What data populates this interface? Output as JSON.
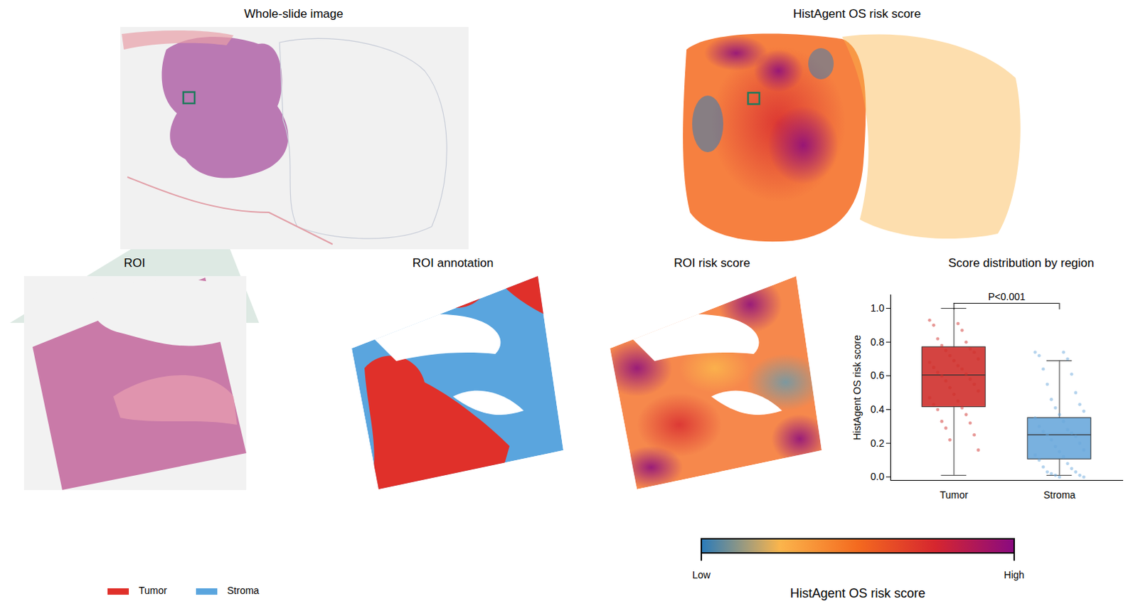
{
  "panels": {
    "whole_slide": {
      "title": "Whole-slide image"
    },
    "risk_map": {
      "title": "HistAgent OS risk score"
    },
    "roi": {
      "title": "ROI"
    },
    "roi_annotation": {
      "title": "ROI annotation"
    },
    "roi_risk": {
      "title": "ROI risk score"
    },
    "legend": [
      {
        "name": "Tumor",
        "color": "#e0302a"
      },
      {
        "name": "Stroma",
        "color": "#5aa5de"
      }
    ],
    "colorbar": {
      "title": "HistAgent OS risk score",
      "low_label": "Low",
      "high_label": "High",
      "colors": [
        "#2b7bb9",
        "#fbb54c",
        "#f46a1f",
        "#d6262f",
        "#8a0a80"
      ]
    }
  },
  "chart_data": {
    "type": "box",
    "title": "Score distribution by region",
    "ylabel": "HistAgent OS risk score",
    "categories": [
      "Tumor",
      "Stroma"
    ],
    "colors": [
      "#cf302c",
      "#6aa8dc"
    ],
    "box": [
      {
        "min": 0.01,
        "q1": 0.415,
        "median": 0.605,
        "q3": 0.77,
        "max": 1.0
      },
      {
        "min": 0.01,
        "q1": 0.105,
        "median": 0.25,
        "q3": 0.35,
        "max": 0.69
      }
    ],
    "points": [
      [
        0.93,
        0.91,
        0.9,
        0.87,
        0.82,
        0.8,
        0.78,
        0.76,
        0.75,
        0.74,
        0.72,
        0.7,
        0.69,
        0.68,
        0.66,
        0.65,
        0.64,
        0.62,
        0.61,
        0.6,
        0.58,
        0.57,
        0.55,
        0.53,
        0.51,
        0.49,
        0.47,
        0.45,
        0.43,
        0.41,
        0.4,
        0.37,
        0.33,
        0.32,
        0.29,
        0.25,
        0.22,
        0.16
      ],
      [
        0.74,
        0.74,
        0.72,
        0.7,
        0.64,
        0.61,
        0.55,
        0.5,
        0.46,
        0.43,
        0.41,
        0.39,
        0.37,
        0.35,
        0.33,
        0.3,
        0.28,
        0.27,
        0.26,
        0.25,
        0.24,
        0.22,
        0.2,
        0.18,
        0.16,
        0.15,
        0.13,
        0.12,
        0.1,
        0.08,
        0.06,
        0.05,
        0.03,
        0.03,
        0.02,
        0.01,
        0.01,
        0.0,
        0.0
      ]
    ],
    "ylim": [
      -0.02,
      1.08
    ],
    "yticks": [
      {
        "value": 0,
        "label": "0.0"
      },
      {
        "value": 0.2,
        "label": "0.2"
      },
      {
        "value": 0.4,
        "label": "0.4"
      },
      {
        "value": 0.6,
        "label": "0.6"
      },
      {
        "value": 0.8,
        "label": "0.8"
      },
      {
        "value": 1,
        "label": "1.0"
      }
    ],
    "annotation": {
      "text": "P<0.001",
      "between": [
        "Tumor",
        "Stroma"
      ],
      "y": 1.03
    }
  }
}
